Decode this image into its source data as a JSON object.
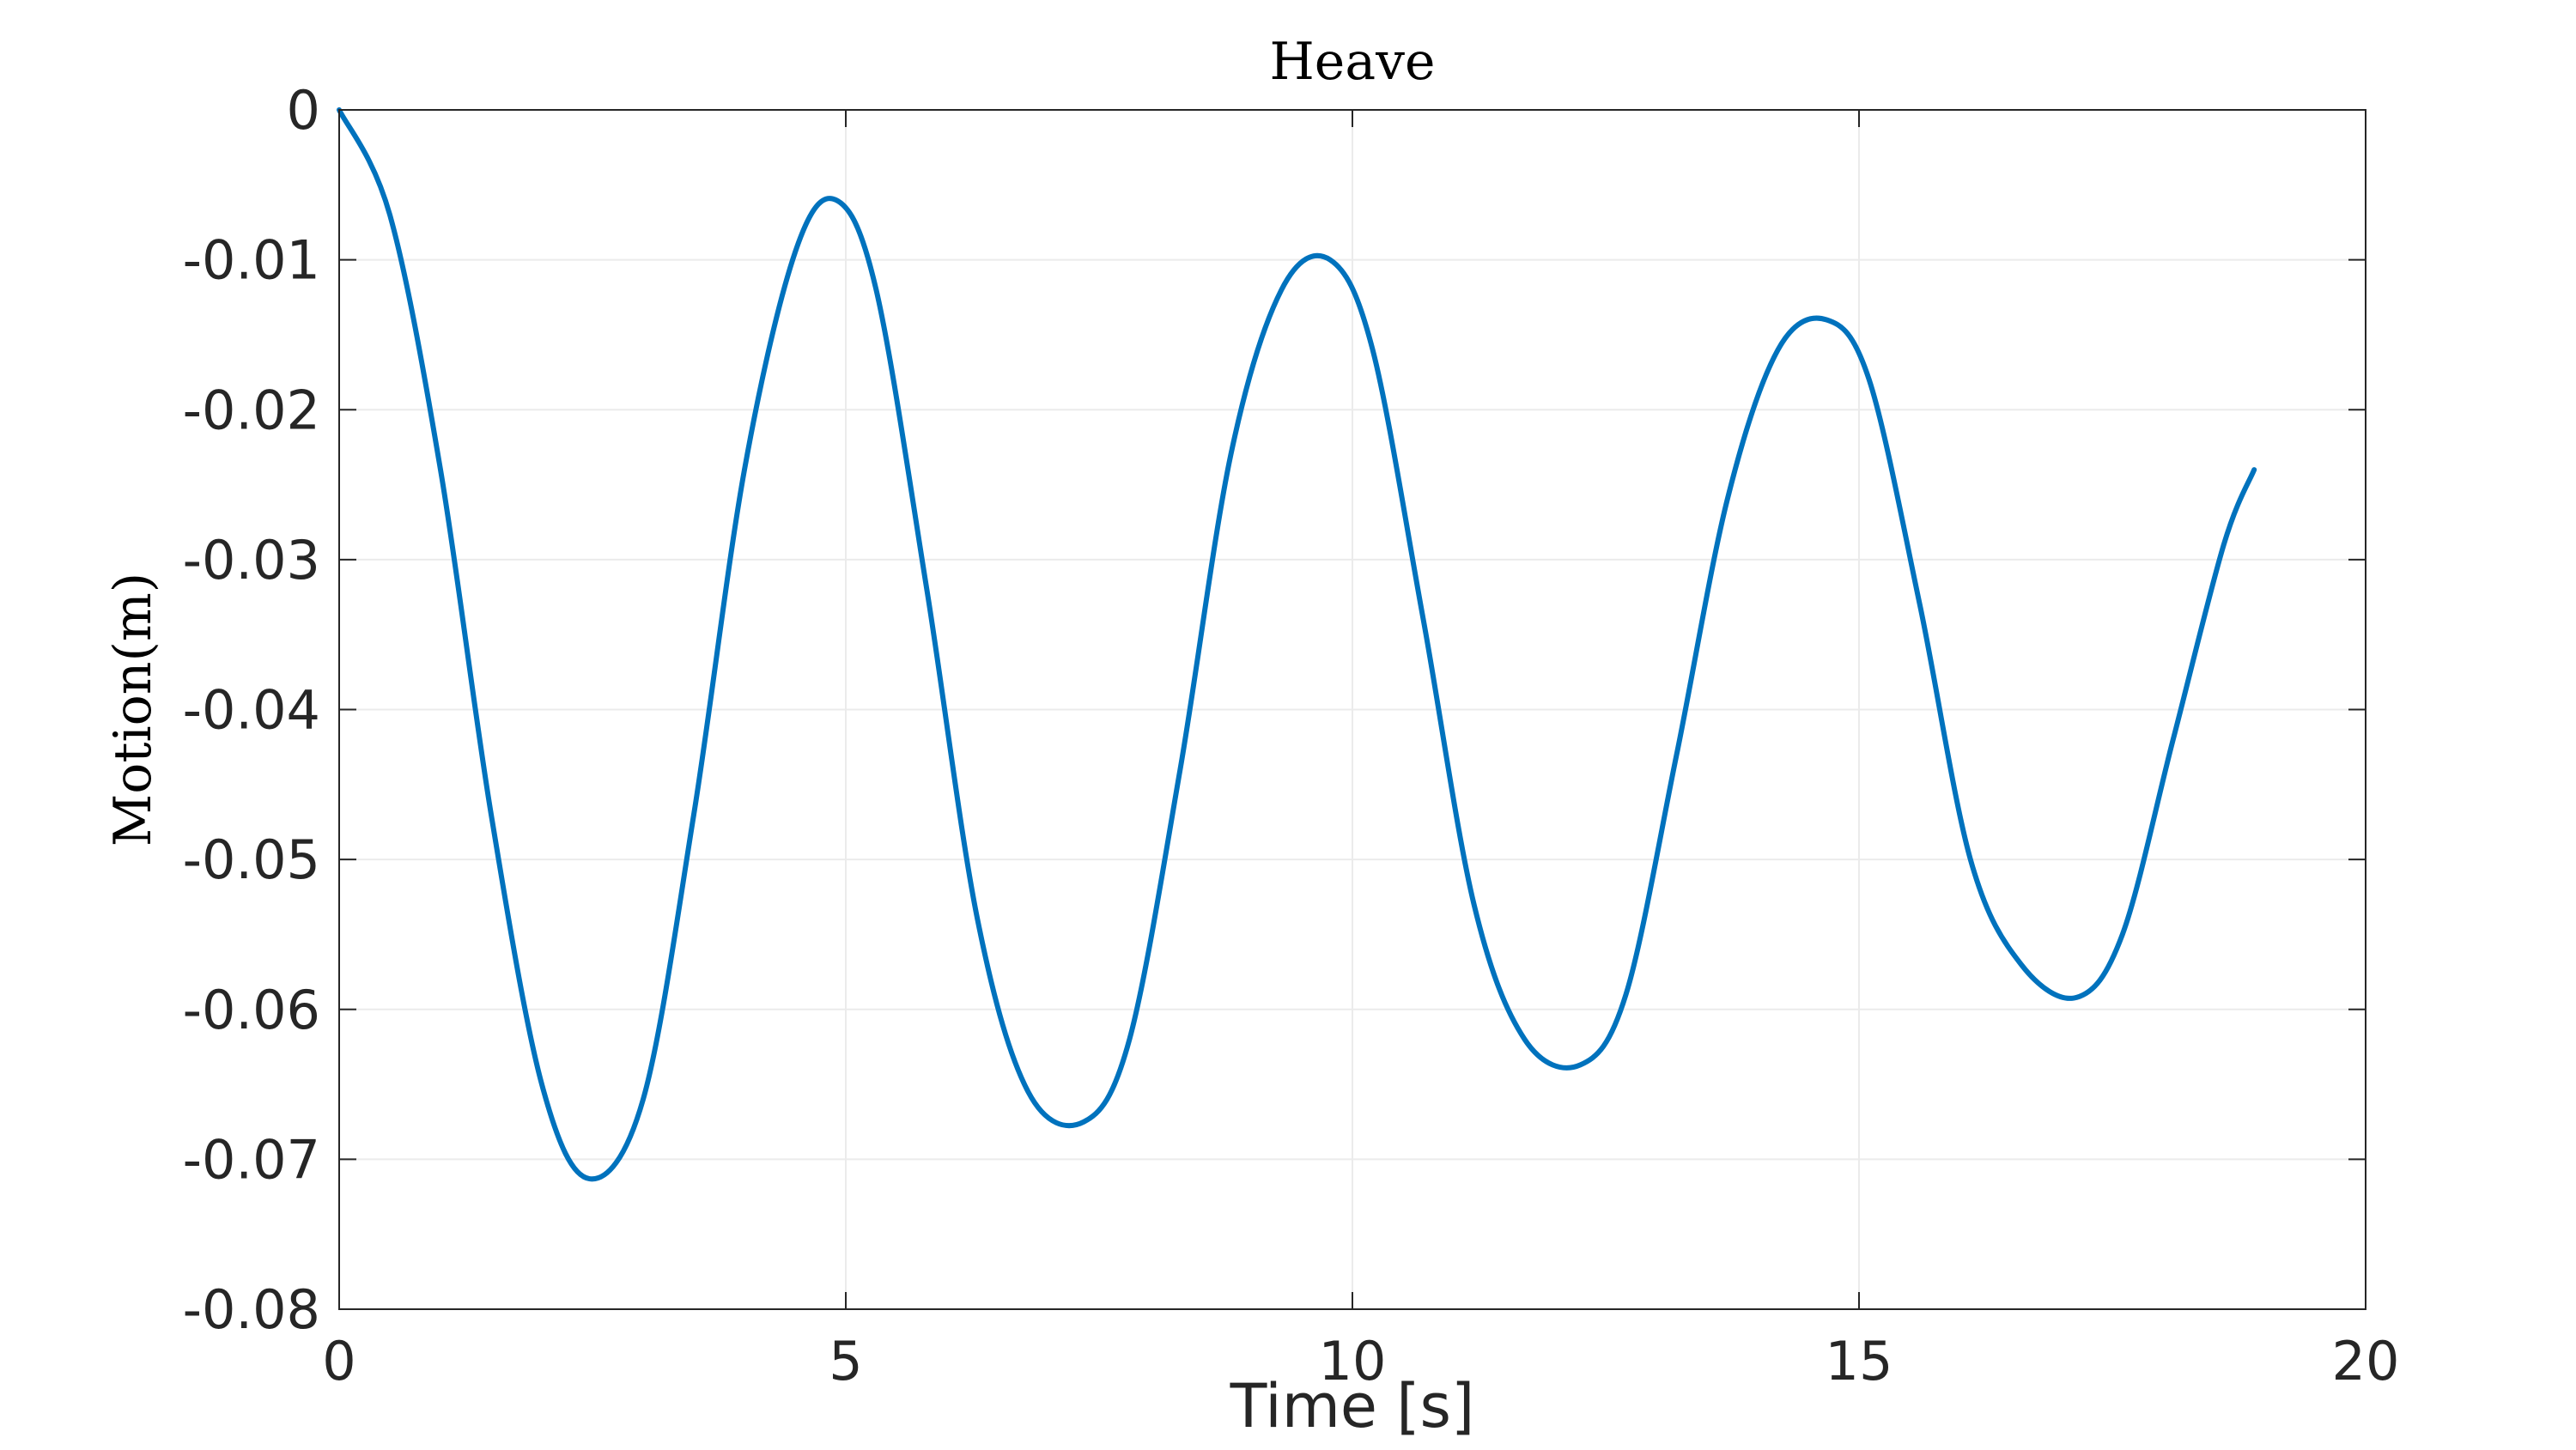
{
  "chart_data": {
    "type": "line",
    "title": "Heave",
    "xlabel": "Time [s]",
    "ylabel": "Motion(m)",
    "xlim": [
      0,
      20
    ],
    "ylim": [
      -0.08,
      0
    ],
    "xticks": [
      0,
      5,
      10,
      15,
      20
    ],
    "xtick_labels": [
      "0",
      "5",
      "10",
      "15",
      "20"
    ],
    "yticks": [
      0,
      -0.01,
      -0.02,
      -0.03,
      -0.04,
      -0.05,
      -0.06,
      -0.07,
      -0.08
    ],
    "ytick_labels": [
      "0",
      "-0.01",
      "-0.02",
      "-0.03",
      "-0.04",
      "-0.05",
      "-0.06",
      "-0.07",
      "-0.08"
    ],
    "grid": true,
    "legend": false,
    "series": [
      {
        "color": "#0072BD",
        "x": [
          0,
          0.5,
          1,
          1.5,
          2,
          2.47,
          3,
          3.5,
          4,
          4.5,
          4.9,
          5.3,
          5.8,
          6.3,
          6.8,
          7.35,
          7.8,
          8.3,
          8.8,
          9.3,
          9.78,
          10.2,
          10.7,
          11.2,
          11.7,
          12.25,
          12.7,
          13.2,
          13.7,
          14.2,
          14.68,
          15.1,
          15.6,
          16.1,
          16.6,
          17.15,
          17.6,
          18.1,
          18.6,
          18.9
        ],
        "y": [
          0,
          -0.007,
          -0.024,
          -0.047,
          -0.065,
          -0.0713,
          -0.066,
          -0.047,
          -0.024,
          -0.0095,
          -0.006,
          -0.012,
          -0.032,
          -0.054,
          -0.0655,
          -0.0675,
          -0.062,
          -0.044,
          -0.023,
          -0.012,
          -0.01,
          -0.016,
          -0.034,
          -0.053,
          -0.062,
          -0.0637,
          -0.059,
          -0.043,
          -0.026,
          -0.016,
          -0.014,
          -0.018,
          -0.033,
          -0.05,
          -0.057,
          -0.0592,
          -0.055,
          -0.042,
          -0.029,
          -0.024
        ]
      }
    ]
  }
}
